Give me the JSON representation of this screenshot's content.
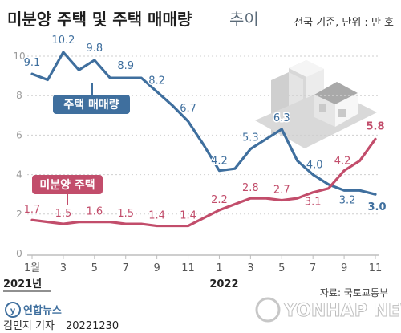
{
  "header": {
    "title_main": "미분양 주택 및 주택 매매량",
    "title_sub": "추이",
    "unit_note": "전국 기준, 단위 : 만 호"
  },
  "colors": {
    "sales": "#3f6f9e",
    "unsold": "#c24d6b",
    "grid": "#cfcfcf",
    "axis": "#bdbdbd"
  },
  "chart_data": {
    "type": "line",
    "x": [
      "2021-01",
      "2021-02",
      "2021-03",
      "2021-04",
      "2021-05",
      "2021-06",
      "2021-07",
      "2021-08",
      "2021-09",
      "2021-10",
      "2021-11",
      "2021-12",
      "2022-01",
      "2022-02",
      "2022-03",
      "2022-04",
      "2022-05",
      "2022-06",
      "2022-07",
      "2022-08",
      "2022-09",
      "2022-10",
      "2022-11"
    ],
    "x_tick_labels": [
      "1월",
      "3",
      "5",
      "7",
      "9",
      "11",
      "1",
      "3",
      "5",
      "7",
      "9",
      "11"
    ],
    "year_labels": [
      "2021년",
      "2022"
    ],
    "ylim": [
      0,
      10
    ],
    "y_ticks": [
      0,
      2,
      4,
      6,
      8,
      10
    ],
    "grid": "horizontal",
    "series": [
      {
        "name": "주택 매매량",
        "color": "#3f6f9e",
        "values": [
          9.1,
          8.8,
          10.2,
          9.3,
          9.8,
          8.9,
          8.9,
          8.9,
          8.2,
          7.5,
          6.7,
          5.5,
          4.2,
          4.3,
          5.3,
          5.8,
          6.3,
          4.7,
          4.0,
          3.5,
          3.2,
          3.2,
          3.0
        ],
        "labels": {
          "2021-01": "9.1",
          "2021-03": "10.2",
          "2021-05": "9.8",
          "2021-07": "8.9",
          "2021-09": "8.2",
          "2021-11": "6.7",
          "2022-01": "4.2",
          "2022-03": "5.3",
          "2022-05": "6.3",
          "2022-07": "4.0",
          "2022-09": "3.2",
          "2022-11": "3.0"
        }
      },
      {
        "name": "미분양 주택",
        "color": "#c24d6b",
        "values": [
          1.7,
          1.6,
          1.5,
          1.6,
          1.6,
          1.6,
          1.5,
          1.5,
          1.4,
          1.4,
          1.4,
          1.8,
          2.2,
          2.5,
          2.8,
          2.8,
          2.7,
          2.8,
          3.1,
          3.3,
          4.2,
          4.7,
          5.8
        ],
        "labels": {
          "2021-01": "1.7",
          "2021-03": "1.5",
          "2021-05": "1.6",
          "2021-07": "1.5",
          "2021-09": "1.4",
          "2021-11": "1.4",
          "2022-01": "2.2",
          "2022-03": "2.8",
          "2022-05": "2.7",
          "2022-07": "3.1",
          "2022-09": "4.2",
          "2022-11": "5.8"
        }
      }
    ]
  },
  "source": "자료: 국토교통부",
  "footer": {
    "logo_text": "연합뉴스",
    "reporter": "김민지 기자",
    "date": "20221230",
    "watermark": "YONHAP NEWS"
  }
}
